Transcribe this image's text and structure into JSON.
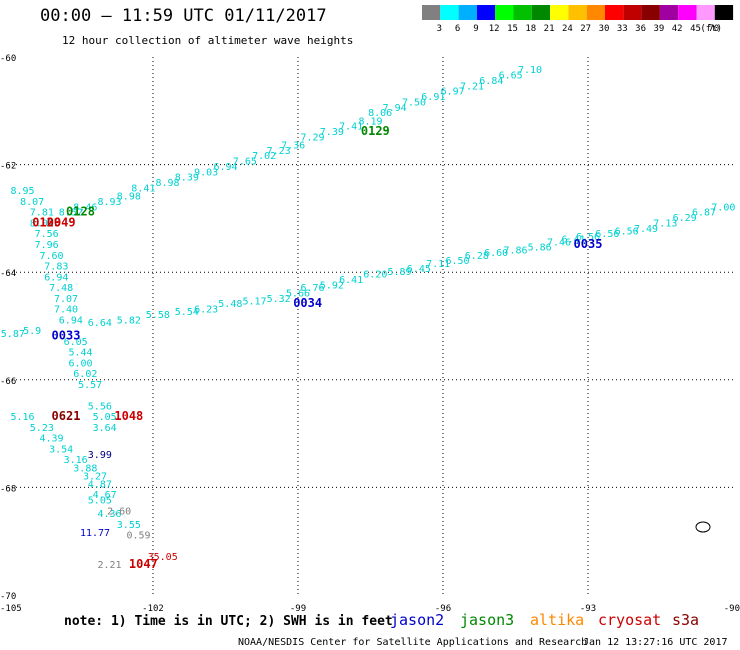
{
  "header": {
    "title": "00:00 – 11:59 UTC 01/11/2017",
    "subtitle": "12 hour collection of altimeter wave heights"
  },
  "legend": {
    "unit": "(ft)",
    "bins": [
      {
        "label": "3",
        "color": "#808080"
      },
      {
        "label": "6",
        "color": "#00ffff"
      },
      {
        "label": "9",
        "color": "#00b0ff"
      },
      {
        "label": "12",
        "color": "#0000ff"
      },
      {
        "label": "15",
        "color": "#00ff00"
      },
      {
        "label": "18",
        "color": "#00c000"
      },
      {
        "label": "21",
        "color": "#008800"
      },
      {
        "label": "24",
        "color": "#ffff00"
      },
      {
        "label": "27",
        "color": "#ffc000"
      },
      {
        "label": "30",
        "color": "#ff8800"
      },
      {
        "label": "33",
        "color": "#ff0000"
      },
      {
        "label": "36",
        "color": "#c00000"
      },
      {
        "label": "39",
        "color": "#880000"
      },
      {
        "label": "42",
        "color": "#a000a0"
      },
      {
        "label": "45",
        "color": "#ff00ff"
      },
      {
        "label": "70",
        "color": "#ff99ff"
      },
      {
        "label": "",
        "color": "#000000"
      }
    ]
  },
  "footer": {
    "note": "note: 1) Time is in UTC; 2) SWH is in feet",
    "satellites": [
      {
        "name": "jason2",
        "color": "#0000cc"
      },
      {
        "name": "jason3",
        "color": "#008800"
      },
      {
        "name": "altika",
        "color": "#ff8800"
      },
      {
        "name": "cryosat",
        "color": "#cc0000"
      },
      {
        "name": "s3a",
        "color": "#880000"
      }
    ],
    "credit": "NOAA/NESDIS Center for Satellite Applications and Research",
    "timestamp": "Jan 12 13:27:16 UTC 2017"
  },
  "chart_data": {
    "type": "scatter",
    "title": "00:00 – 11:59 UTC 01/11/2017",
    "xlim": [
      -105,
      -90
    ],
    "ylim": [
      -70,
      -60
    ],
    "x_ticks": [
      {
        "value": -105,
        "label": "-105"
      },
      {
        "value": -102,
        "label": "-102"
      },
      {
        "value": -99,
        "label": "-99"
      },
      {
        "value": -96,
        "label": "-96"
      },
      {
        "value": -93,
        "label": "-93"
      },
      {
        "value": -90,
        "label": "-90"
      }
    ],
    "y_ticks": [
      {
        "value": -60,
        "label": "-60"
      },
      {
        "value": -62,
        "label": "-62"
      },
      {
        "value": -64,
        "label": "-64"
      },
      {
        "value": -66,
        "label": "-66"
      },
      {
        "value": -68,
        "label": "-68"
      },
      {
        "value": -70,
        "label": "-70"
      }
    ],
    "grid": true,
    "series": [
      {
        "name": "jason3",
        "text_color": "#00d0d0",
        "points": [
          {
            "x": -104.7,
            "y": -62.55,
            "v": "8.95"
          },
          {
            "x": -104.5,
            "y": -62.75,
            "v": "8.07"
          },
          {
            "x": -104.3,
            "y": -62.95,
            "v": "7.81"
          },
          {
            "x": -104.3,
            "y": -63.15,
            "v": "8.02"
          },
          {
            "x": -104.2,
            "y": -63.35,
            "v": "7.56"
          },
          {
            "x": -104.2,
            "y": -63.55,
            "v": "7.96"
          },
          {
            "x": -104.1,
            "y": -63.75,
            "v": "7.60"
          },
          {
            "x": -104.0,
            "y": -63.95,
            "v": "7.83"
          },
          {
            "x": -104.0,
            "y": -64.15,
            "v": "6.94"
          },
          {
            "x": -103.9,
            "y": -64.35,
            "v": "7.48"
          },
          {
            "x": -103.8,
            "y": -64.55,
            "v": "7.07"
          },
          {
            "x": -103.8,
            "y": -64.75,
            "v": "7.40"
          },
          {
            "x": -103.7,
            "y": -64.95,
            "v": "6.94"
          },
          {
            "x": -103.6,
            "y": -65.35,
            "v": "6.05"
          },
          {
            "x": -103.5,
            "y": -65.55,
            "v": "5.44"
          },
          {
            "x": -103.5,
            "y": -65.75,
            "v": "6.00"
          },
          {
            "x": -103.4,
            "y": -65.95,
            "v": "6.02"
          },
          {
            "x": -103.3,
            "y": -66.15,
            "v": "5.57"
          },
          {
            "x": -103.1,
            "y": -66.55,
            "v": "5.56"
          },
          {
            "x": -103.0,
            "y": -66.75,
            "v": "5.05"
          },
          {
            "x": -103.0,
            "y": -66.95,
            "v": "3.64"
          },
          {
            "x": -103.7,
            "y": -62.95,
            "v": "8.52"
          },
          {
            "x": -103.4,
            "y": -62.85,
            "v": "8.46"
          },
          {
            "x": -102.9,
            "y": -62.75,
            "v": "8.93"
          },
          {
            "x": -102.5,
            "y": -62.65,
            "v": "8.98"
          },
          {
            "x": -102.2,
            "y": -62.5,
            "v": "8.41"
          },
          {
            "x": -101.7,
            "y": -62.4,
            "v": "8.98"
          },
          {
            "x": -101.3,
            "y": -62.3,
            "v": "8.39"
          },
          {
            "x": -100.9,
            "y": -62.2,
            "v": "9.03"
          },
          {
            "x": -100.5,
            "y": -62.1,
            "v": "6.94"
          },
          {
            "x": -100.1,
            "y": -62.0,
            "v": "7.65"
          },
          {
            "x": -99.7,
            "y": -61.9,
            "v": "7.02"
          },
          {
            "x": -99.4,
            "y": -61.8,
            "v": "7.23"
          },
          {
            "x": -99.1,
            "y": -61.7,
            "v": "7.36"
          },
          {
            "x": -98.7,
            "y": -61.55,
            "v": "7.29"
          },
          {
            "x": -98.3,
            "y": -61.45,
            "v": "7.39"
          },
          {
            "x": -97.9,
            "y": -61.35,
            "v": "7.41"
          },
          {
            "x": -97.5,
            "y": -61.25,
            "v": "8.19"
          },
          {
            "x": -97.3,
            "y": -61.1,
            "v": "8.06"
          },
          {
            "x": -97.0,
            "y": -61.0,
            "v": "7.94"
          },
          {
            "x": -96.6,
            "y": -60.9,
            "v": "7.50"
          },
          {
            "x": -96.2,
            "y": -60.8,
            "v": "6.91"
          },
          {
            "x": -95.8,
            "y": -60.7,
            "v": "6.97"
          },
          {
            "x": -95.4,
            "y": -60.6,
            "v": "7.21"
          },
          {
            "x": -95.0,
            "y": -60.5,
            "v": "6.84"
          },
          {
            "x": -94.6,
            "y": -60.4,
            "v": "6.65"
          },
          {
            "x": -94.2,
            "y": -60.3,
            "v": "7.10"
          }
        ]
      },
      {
        "name": "jason2",
        "text_color": "#00d0d0",
        "points": [
          {
            "x": -104.9,
            "y": -65.2,
            "v": "5.87"
          },
          {
            "x": -104.5,
            "y": -65.15,
            "v": "5.9"
          },
          {
            "x": -103.1,
            "y": -65.0,
            "v": "6.64"
          },
          {
            "x": -102.5,
            "y": -64.95,
            "v": "5.82"
          },
          {
            "x": -101.9,
            "y": -64.85,
            "v": "5.58"
          },
          {
            "x": -101.3,
            "y": -64.8,
            "v": "5.54"
          },
          {
            "x": -100.9,
            "y": -64.75,
            "v": "6.23"
          },
          {
            "x": -100.4,
            "y": -64.65,
            "v": "5.48"
          },
          {
            "x": -99.9,
            "y": -64.6,
            "v": "5.17"
          },
          {
            "x": -99.4,
            "y": -64.55,
            "v": "5.32"
          },
          {
            "x": -99.0,
            "y": -64.45,
            "v": "5.66"
          },
          {
            "x": -98.7,
            "y": -64.35,
            "v": "6.76"
          },
          {
            "x": -98.3,
            "y": -64.3,
            "v": "5.92"
          },
          {
            "x": -97.9,
            "y": -64.2,
            "v": "6.41"
          },
          {
            "x": -97.4,
            "y": -64.1,
            "v": "6.20"
          },
          {
            "x": -96.9,
            "y": -64.05,
            "v": "5.89"
          },
          {
            "x": -96.5,
            "y": -64.0,
            "v": "6.45"
          },
          {
            "x": -96.1,
            "y": -63.9,
            "v": "7.11"
          },
          {
            "x": -95.7,
            "y": -63.85,
            "v": "6.50"
          },
          {
            "x": -95.3,
            "y": -63.75,
            "v": "6.28"
          },
          {
            "x": -94.9,
            "y": -63.7,
            "v": "6.60"
          },
          {
            "x": -94.5,
            "y": -63.65,
            "v": "7.86"
          },
          {
            "x": -94.0,
            "y": -63.6,
            "v": "5.86"
          },
          {
            "x": -93.6,
            "y": -63.5,
            "v": "7.46"
          },
          {
            "x": -93.3,
            "y": -63.45,
            "v": "6.41"
          },
          {
            "x": -93.0,
            "y": -63.4,
            "v": "6.56"
          },
          {
            "x": -92.6,
            "y": -63.35,
            "v": "6.56"
          },
          {
            "x": -92.2,
            "y": -63.3,
            "v": "6.56"
          },
          {
            "x": -91.8,
            "y": -63.25,
            "v": "7.49"
          },
          {
            "x": -91.4,
            "y": -63.15,
            "v": "7.13"
          },
          {
            "x": -91.0,
            "y": -63.05,
            "v": "6.29"
          },
          {
            "x": -90.6,
            "y": -62.95,
            "v": "6.87"
          },
          {
            "x": -90.2,
            "y": -62.85,
            "v": "7.00"
          }
        ]
      },
      {
        "name": "cryosat",
        "text_color": "#00d0d0",
        "points": [
          {
            "x": -104.7,
            "y": -66.75,
            "v": "5.16"
          },
          {
            "x": -104.3,
            "y": -66.95,
            "v": "5.23"
          },
          {
            "x": -104.1,
            "y": -67.15,
            "v": "4.39"
          },
          {
            "x": -103.9,
            "y": -67.35,
            "v": "3.54"
          },
          {
            "x": -103.6,
            "y": -67.55,
            "v": "3.16"
          },
          {
            "x": -103.4,
            "y": -67.7,
            "v": "3.88"
          },
          {
            "x": -103.2,
            "y": -67.85,
            "v": "3.27"
          },
          {
            "x": -103.1,
            "y": -68.0,
            "v": "4.87"
          },
          {
            "x": -103.0,
            "y": -68.2,
            "v": "4.67"
          },
          {
            "x": -103.1,
            "y": -68.3,
            "v": "5.05"
          },
          {
            "x": -102.9,
            "y": -68.55,
            "v": "4.36"
          },
          {
            "x": -102.5,
            "y": -68.75,
            "v": "3.55"
          }
        ]
      },
      {
        "name": "other",
        "text_color": "#808080",
        "points": [
          {
            "x": -102.7,
            "y": -68.5,
            "v": "2.60"
          },
          {
            "x": -102.3,
            "y": -68.95,
            "v": "0.59"
          },
          {
            "x": -102.9,
            "y": -69.5,
            "v": "2.21"
          }
        ]
      },
      {
        "name": "extra",
        "text_color": "#000080",
        "points": [
          {
            "x": -103.1,
            "y": -67.45,
            "v": "3.99"
          }
        ]
      },
      {
        "name": "blue-values",
        "text_color": "#0000cc",
        "points": [
          {
            "x": -103.2,
            "y": -68.9,
            "v": "11.77"
          }
        ]
      },
      {
        "name": "red-values",
        "text_color": "#cc0000",
        "points": [
          {
            "x": -101.8,
            "y": -69.35,
            "v": "35.05"
          }
        ]
      }
    ],
    "pass_labels": [
      {
        "x": -97.4,
        "y": -61.45,
        "label": "0129",
        "color": "#008800"
      },
      {
        "x": -103.5,
        "y": -62.95,
        "label": "0128",
        "color": "#008800"
      },
      {
        "x": -104.2,
        "y": -63.15,
        "label": "0129",
        "color": "#cc0000"
      },
      {
        "x": -103.9,
        "y": -63.15,
        "label": "0049",
        "color": "#cc0000"
      },
      {
        "x": -98.8,
        "y": -64.65,
        "label": "0034",
        "color": "#0000cc"
      },
      {
        "x": -103.8,
        "y": -65.25,
        "label": "0033",
        "color": "#0000cc"
      },
      {
        "x": -93.0,
        "y": -63.55,
        "label": "0035",
        "color": "#0000cc"
      },
      {
        "x": -103.8,
        "y": -66.75,
        "label": "0621",
        "color": "#880000"
      },
      {
        "x": -102.5,
        "y": -66.75,
        "label": "1048",
        "color": "#cc0000"
      },
      {
        "x": -102.2,
        "y": -69.5,
        "label": "1047",
        "color": "#cc0000"
      }
    ]
  }
}
